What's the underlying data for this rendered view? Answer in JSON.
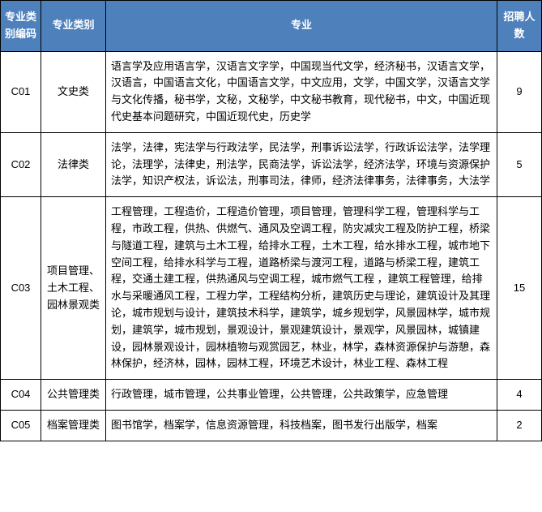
{
  "table": {
    "header_bg": "#4e80bb",
    "header_color": "#ffffff",
    "border_color": "#000000",
    "font_size_body": 13,
    "font_size_header": 13,
    "columns": [
      {
        "key": "code",
        "label": "专业类别编码",
        "width": 50,
        "align": "center"
      },
      {
        "key": "cat",
        "label": "专业类别",
        "width": 80,
        "align": "center"
      },
      {
        "key": "major",
        "label": "专业",
        "width": 0,
        "align": "left"
      },
      {
        "key": "count",
        "label": "招聘人数",
        "width": 55,
        "align": "center"
      }
    ],
    "rows": [
      {
        "code": "C01",
        "cat": "文史类",
        "major": "语言学及应用语言学，汉语言文字学，中国现当代文学，经济秘书，汉语言文学，汉语言，中国语言文化，中国语言文学，中文应用，文学，中国文学，汉语言文学与文化传播，秘书学，文秘，文秘学，中文秘书教育，现代秘书，中文，中国近现代史基本问题研究，中国近现代史，历史学",
        "count": "9"
      },
      {
        "code": "C02",
        "cat": "法律类",
        "major": "法学，法律，宪法学与行政法学，民法学，刑事诉讼法学，行政诉讼法学，法学理论，法理学，法律史，刑法学，民商法学，诉讼法学，经济法学，环境与资源保护法学，知识产权法，诉讼法，刑事司法，律师，经济法律事务，法律事务，大法学",
        "count": "5"
      },
      {
        "code": "C03",
        "cat": "项目管理、土木工程、园林景观类",
        "major": "工程管理，工程造价，工程造价管理，项目管理，管理科学工程，管理科学与工程，市政工程，供热、供燃气、通风及空调工程，防灾减灾工程及防护工程，桥梁与隧道工程，建筑与土木工程，给排水工程，土木工程，给水排水工程，城市地下空间工程，给排水科学与工程，道路桥梁与渡河工程，道路与桥梁工程，建筑工程，交通土建工程，供热通风与空调工程，城市燃气工程 ，建筑工程管理，给排水与采暖通风工程，工程力学，工程结构分析，建筑历史与理论，建筑设计及其理论，城市规划与设计，建筑技术科学，建筑学，城乡规划学，风景园林学，城市规划，建筑学，城市规划，景观设计，景观建筑设计，景观学，风景园林，城镇建设，园林景观设计，园林植物与观赏园艺，林业，林学，森林资源保护与游憩，森林保护，经济林，园林，园林工程，环境艺术设计，林业工程、森林工程",
        "count": "15"
      },
      {
        "code": "C04",
        "cat": "公共管理类",
        "major": "行政管理，城市管理，公共事业管理，公共管理，公共政策学，应急管理",
        "count": "4"
      },
      {
        "code": "C05",
        "cat": "档案管理类",
        "major": "图书馆学，档案学，信息资源管理，科技档案，图书发行出版学，档案",
        "count": "2"
      }
    ]
  }
}
